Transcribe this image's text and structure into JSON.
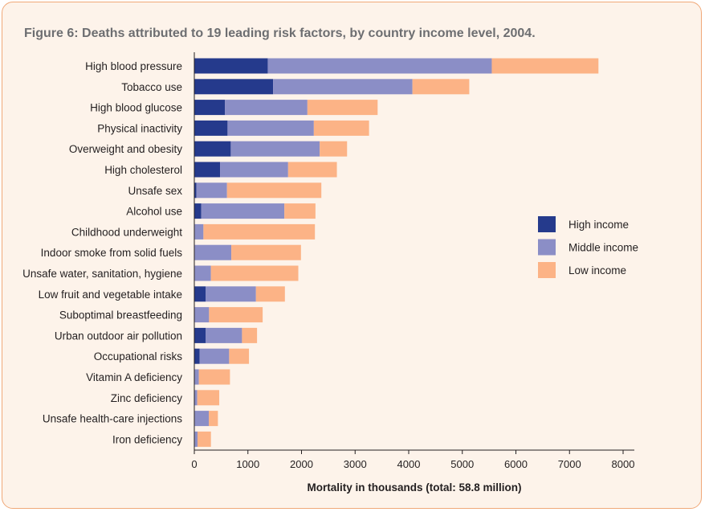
{
  "chart_data": {
    "type": "bar",
    "orientation": "horizontal",
    "stacked": true,
    "title": "Figure 6: Deaths attributed to 19 leading risk factors, by country income level, 2004.",
    "xlabel": "Mortality in thousands (total: 58.8 million)",
    "ylabel": "",
    "xlim": [
      0,
      8000
    ],
    "xticks": [
      0,
      1000,
      2000,
      3000,
      4000,
      5000,
      6000,
      7000,
      8000
    ],
    "legend_position": "right",
    "categories": [
      "High blood pressure",
      "Tobacco use",
      "High blood glucose",
      "Physical inactivity",
      "Overweight and obesity",
      "High cholesterol",
      "Unsafe sex",
      "Alcohol use",
      "Childhood underweight",
      "Indoor smoke from solid fuels",
      "Unsafe water, sanitation, hygiene",
      "Low fruit and vegetable intake",
      "Suboptimal breastfeeding",
      "Urban outdoor air pollution",
      "Occupational risks",
      "Vitamin A deficiency",
      "Zinc deficiency",
      "Unsafe health-care injections",
      "Iron deficiency"
    ],
    "series": [
      {
        "name": "High income",
        "color": "#253a8c",
        "values": [
          1370,
          1470,
          570,
          620,
          680,
          480,
          40,
          130,
          10,
          10,
          10,
          210,
          5,
          210,
          100,
          5,
          5,
          10,
          10
        ]
      },
      {
        "name": "Middle income",
        "color": "#8b8ec6",
        "values": [
          4180,
          2600,
          1540,
          1610,
          1660,
          1270,
          570,
          1550,
          160,
          680,
          300,
          940,
          270,
          680,
          550,
          80,
          50,
          260,
          50
        ]
      },
      {
        "name": "Low income",
        "color": "#fcb386",
        "values": [
          1990,
          1060,
          1310,
          1030,
          510,
          910,
          1760,
          580,
          2080,
          1300,
          1630,
          540,
          1000,
          280,
          370,
          580,
          410,
          170,
          250
        ]
      }
    ]
  }
}
